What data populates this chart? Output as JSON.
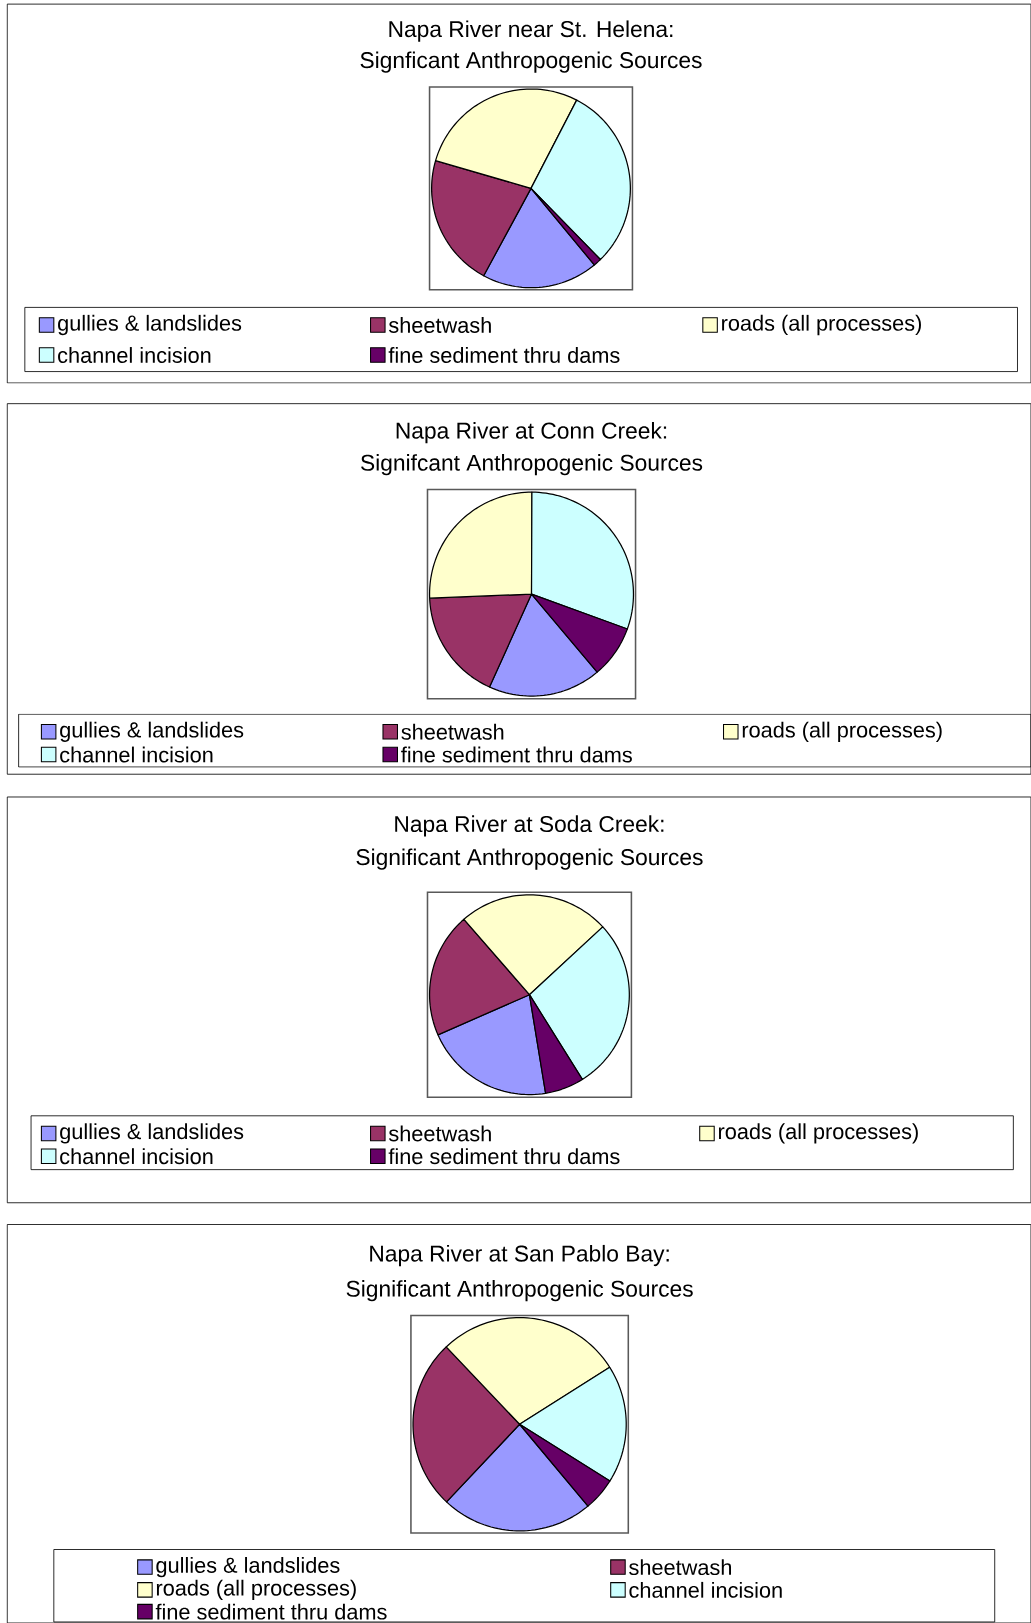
{
  "chart_data": [
    {
      "type": "pie",
      "title": "Napa River near St. Helena:",
      "subtitle": "Signficant Anthropogenic Sources",
      "categories": [
        "gullies & landslides",
        "sheetwash",
        "roads (all processes)",
        "channel incision",
        "fine sediment thru dams"
      ],
      "values": [
        18.9,
        21.6,
        28.1,
        30.1,
        1.3
      ],
      "colors": [
        "#9999ff",
        "#993366",
        "#ffffcc",
        "#ccffff",
        "#660066"
      ],
      "legend": "bottom"
    },
    {
      "type": "pie",
      "title": "Napa River at Conn Creek:",
      "subtitle": "Signifcant Anthropogenic Sources",
      "categories": [
        "gullies & landslides",
        "sheetwash",
        "roads (all processes)",
        "channel incision",
        "fine sediment thru dams"
      ],
      "values": [
        17.9,
        17.6,
        25.7,
        30.5,
        8.3
      ],
      "colors": [
        "#9999ff",
        "#993366",
        "#ffffcc",
        "#ccffff",
        "#660066"
      ],
      "legend": "bottom"
    },
    {
      "type": "pie",
      "title": "Napa River at Soda Creek:",
      "subtitle": "Significant Anthropogenic Sources",
      "categories": [
        "gullies & landslides",
        "sheetwash",
        "roads (all processes)",
        "channel incision",
        "fine sediment thru dams"
      ],
      "values": [
        21.0,
        20.2,
        24.5,
        28.0,
        6.3
      ],
      "colors": [
        "#9999ff",
        "#993366",
        "#ffffcc",
        "#ccffff",
        "#660066"
      ],
      "legend": "bottom"
    },
    {
      "type": "pie",
      "title": "Napa River at San Pablo Bay:",
      "subtitle": "Significant Anthropogenic Sources",
      "categories": [
        "gullies & landslides",
        "sheetwash",
        "roads (all processes)",
        "channel incision",
        "fine sediment thru dams"
      ],
      "values": [
        23.1,
        25.9,
        28.1,
        17.9,
        5.0
      ],
      "colors": [
        "#9999ff",
        "#993366",
        "#ffffcc",
        "#ccffff",
        "#660066"
      ],
      "legend": "bottom"
    }
  ]
}
